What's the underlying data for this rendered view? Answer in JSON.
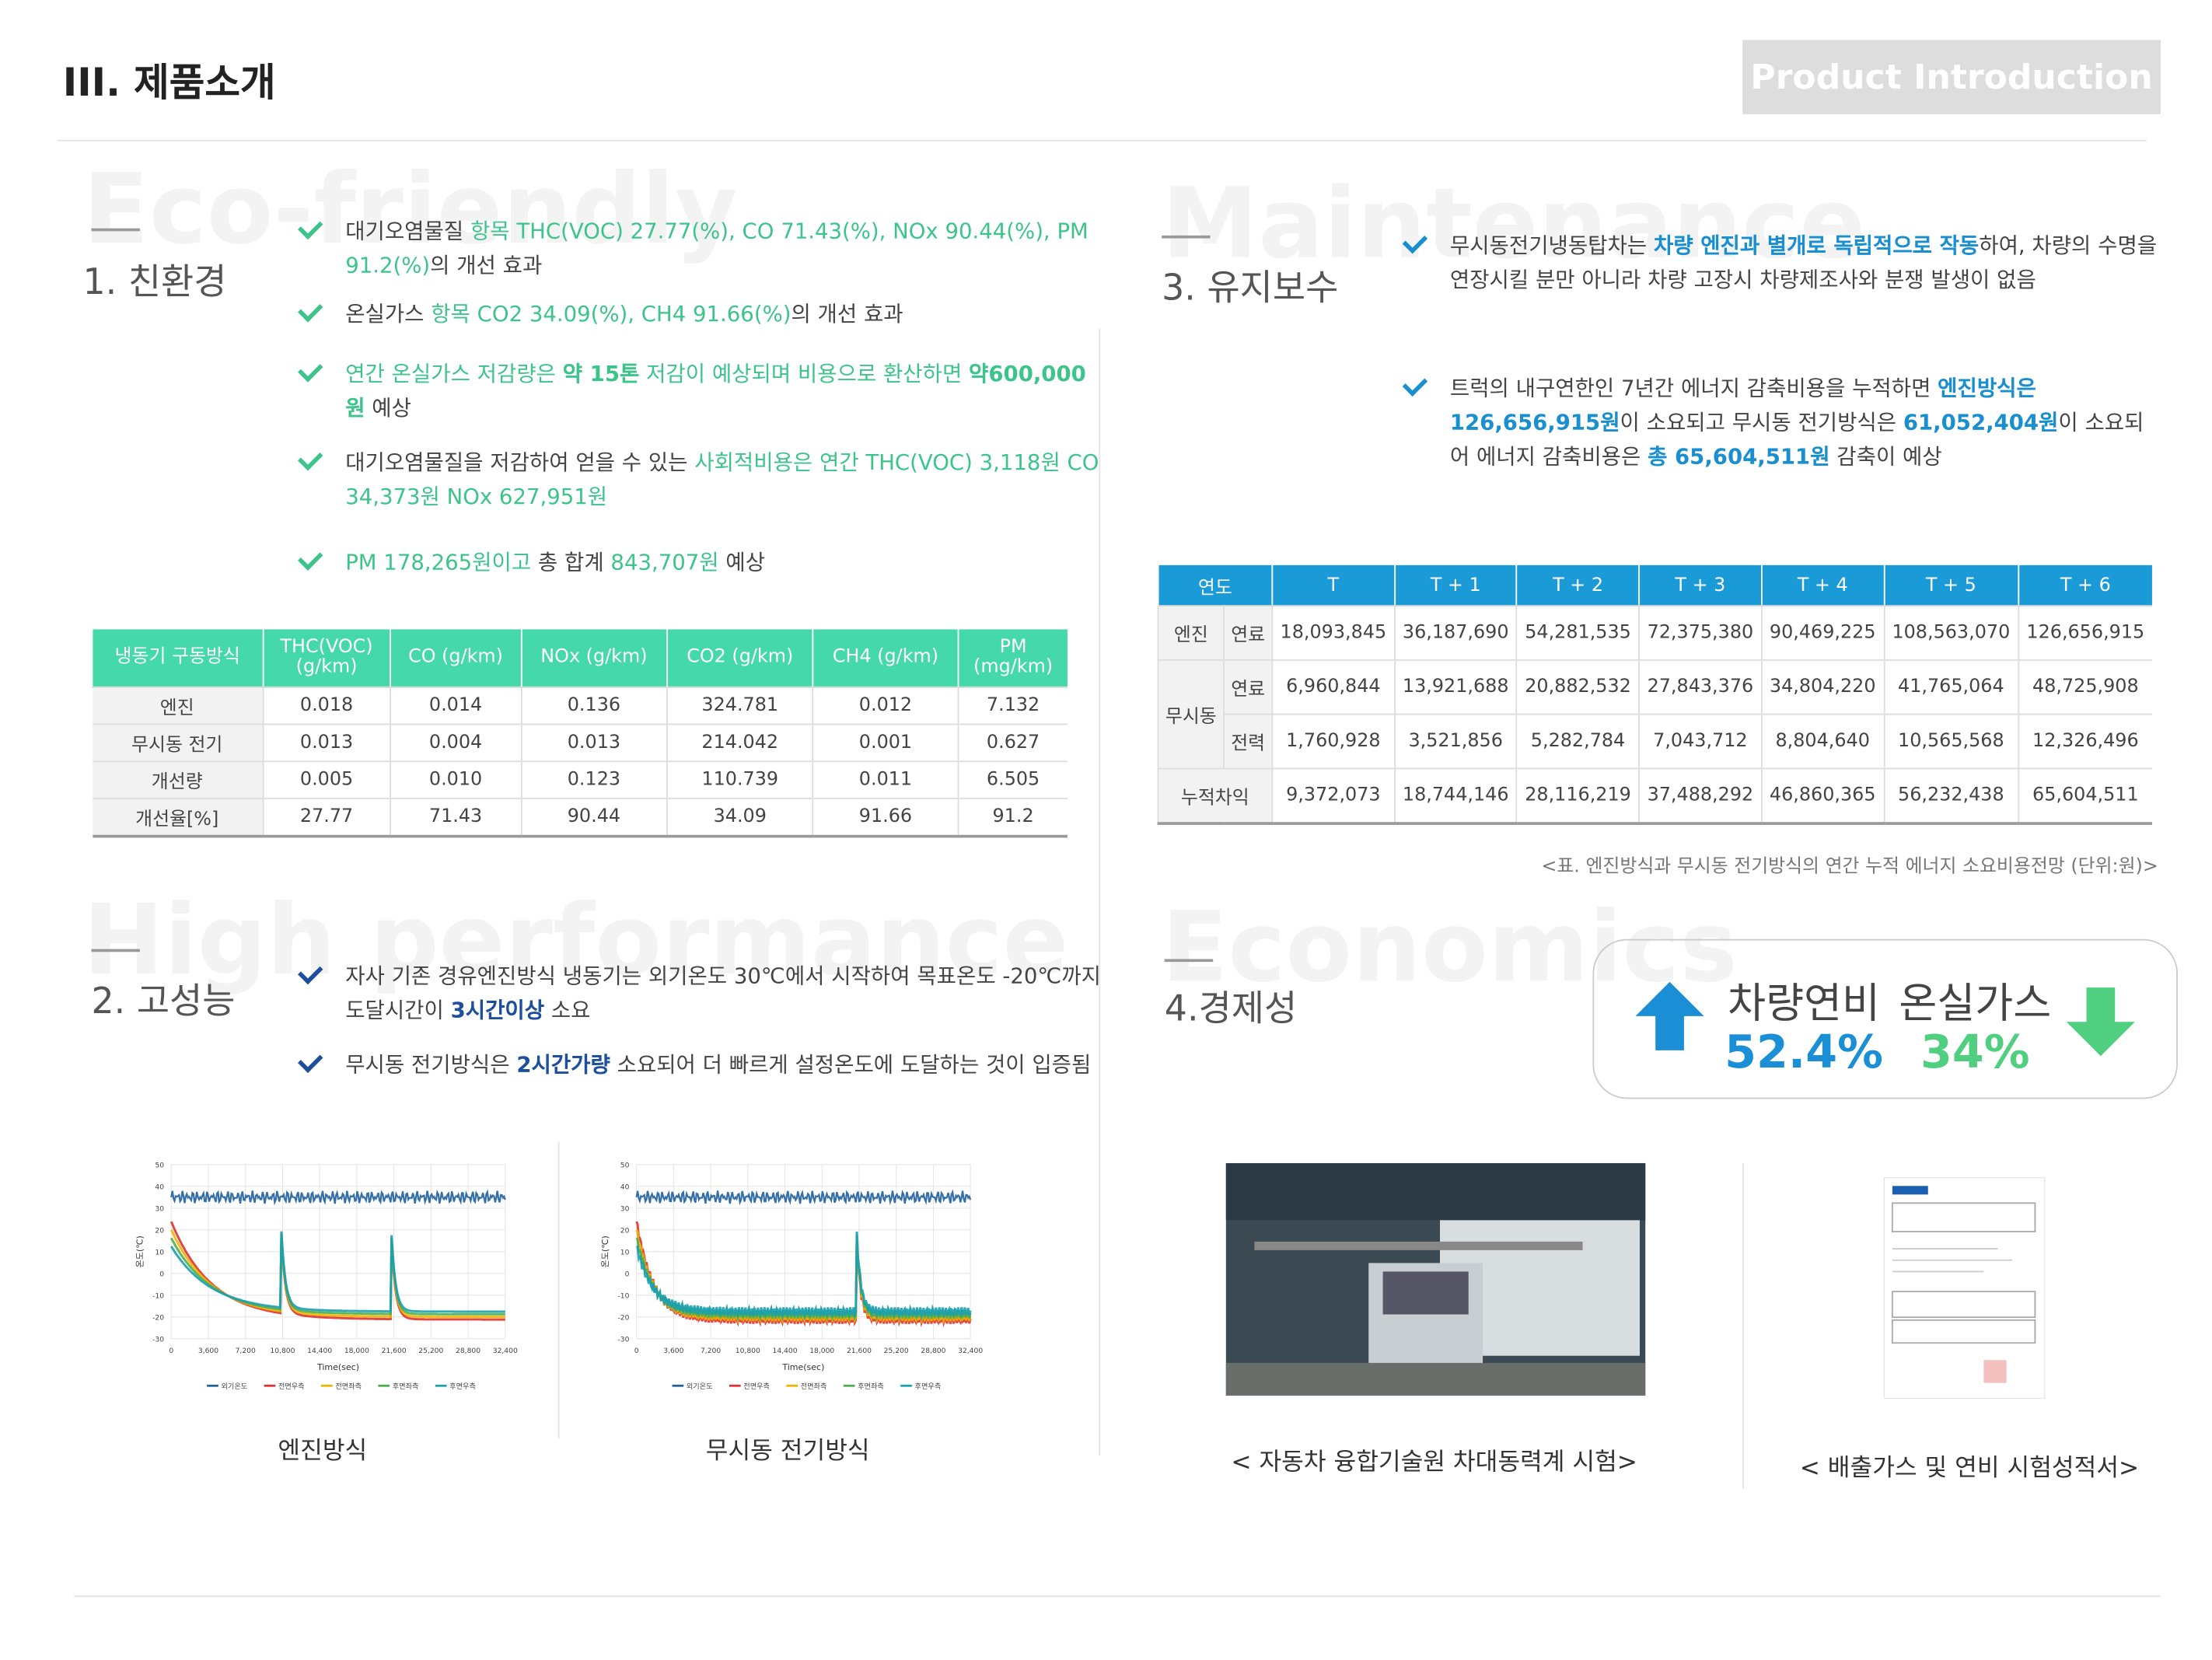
{
  "header": {
    "title": "III. 제품소개",
    "badge": "Product Introduction"
  },
  "eco": {
    "bg": "Eco-friendly",
    "title": "1. 친환경",
    "bullets": [
      [
        [
          "대기오염물질 ",
          ""
        ],
        [
          "항목 THC(VOC) 27.77(%), CO 71.43(%), NOx 90.44(%), PM 91.2(%)",
          "g"
        ],
        [
          "의 개선 효과",
          ""
        ]
      ],
      [
        [
          "온실가스 ",
          ""
        ],
        [
          "항목 CO2 34.09(%), CH4 91.66(%)",
          "g"
        ],
        [
          "의 개선 효과",
          ""
        ]
      ],
      [
        [
          "연간 온실가스 저감량은 ",
          "g"
        ],
        [
          "약 15톤",
          "gb"
        ],
        [
          " 저감이 예상되며 비용으로 환산하면 ",
          "g"
        ],
        [
          "약600,000원",
          "gb"
        ],
        [
          " 예상",
          ""
        ]
      ],
      [
        [
          "대기오염물질을 저감하여 얻을 수 있는 ",
          ""
        ],
        [
          "사회적비용은 연간 THC(VOC) 3,118원 CO 34,373원 NOx 627,951원",
          "g"
        ]
      ],
      [
        [
          "PM 178,265원이고",
          "g"
        ],
        [
          " 총 합계 ",
          ""
        ],
        [
          "843,707원",
          "g"
        ],
        [
          " 예상",
          ""
        ]
      ]
    ],
    "table": {
      "headers": [
        "냉동기 구동방식",
        "THC(VOC)\n(g/km)",
        "CO (g/km)",
        "NOx (g/km)",
        "CO2 (g/km)",
        "CH4 (g/km)",
        "PM\n(mg/km)"
      ],
      "rows": [
        [
          "엔진",
          "0.018",
          "0.014",
          "0.136",
          "324.781",
          "0.012",
          "7.132"
        ],
        [
          "무시동 전기",
          "0.013",
          "0.004",
          "0.013",
          "214.042",
          "0.001",
          "0.627"
        ],
        [
          "개선량",
          "0.005",
          "0.010",
          "0.123",
          "110.739",
          "0.011",
          "6.505"
        ],
        [
          "개선율[%]",
          "27.77",
          "71.43",
          "90.44",
          "34.09",
          "91.66",
          "91.2"
        ]
      ]
    }
  },
  "performance": {
    "bg": "High performance",
    "title": "2. 고성능",
    "bullets": [
      [
        [
          "자사 기존 경유엔진방식 냉동기는 외기온도 30℃에서 시작하여 목표온도 -20℃까지 도달시간이 ",
          ""
        ],
        [
          "3시간이상",
          "b"
        ],
        [
          " 소요",
          ""
        ]
      ],
      [
        [
          "무시동 전기방식은 ",
          ""
        ],
        [
          "2시간가량",
          "b"
        ],
        [
          " 소요되어 더 빠르게 설정온도에 도달하는 것이 입증됨",
          ""
        ]
      ]
    ],
    "charts": [
      {
        "caption": "엔진방식",
        "ylabel": "온도(℃)",
        "xlabel": "Time(sec)",
        "yticks": [
          "50",
          "40",
          "30",
          "20",
          "10",
          "0",
          "-10",
          "-20",
          "-30"
        ],
        "xticks": [
          "0",
          "3,600",
          "7,200",
          "10,800",
          "14,400",
          "18,000",
          "21,600",
          "25,200",
          "28,800",
          "32,400"
        ],
        "legend": [
          {
            "name": "외기온도",
            "color": "#1f5f9f"
          },
          {
            "name": "전면우측",
            "color": "#e0322f"
          },
          {
            "name": "전면좌측",
            "color": "#f0b400"
          },
          {
            "name": "후면좌측",
            "color": "#4cae4c"
          },
          {
            "name": "후면우측",
            "color": "#1aa0b0"
          }
        ]
      },
      {
        "caption": "무시동 전기방식",
        "ylabel": "온도(℃)",
        "xlabel": "Time(sec)",
        "yticks": [
          "50",
          "40",
          "30",
          "20",
          "10",
          "0",
          "-10",
          "-20",
          "-30"
        ],
        "xticks": [
          "0",
          "3,600",
          "7,200",
          "10,800",
          "14,400",
          "18,000",
          "21,600",
          "25,200",
          "28,800",
          "32,400"
        ],
        "legend": [
          {
            "name": "외기온도",
            "color": "#1f5f9f"
          },
          {
            "name": "전면우측",
            "color": "#e0322f"
          },
          {
            "name": "전면좌측",
            "color": "#f0b400"
          },
          {
            "name": "후면좌측",
            "color": "#4cae4c"
          },
          {
            "name": "후면우측",
            "color": "#1aa0b0"
          }
        ]
      }
    ]
  },
  "maintenance": {
    "bg": "Maintenance",
    "title": "3. 유지보수",
    "bullets": [
      [
        [
          "무시동전기냉동탑차는 ",
          ""
        ],
        [
          "차량 엔진과 별개로 독립적으로 작동",
          "b"
        ],
        [
          "하여, 차량의 수명을 연장시킬 분만 아니라 차량 고장시 차량제조사와 분쟁 발생이 없음",
          ""
        ]
      ],
      [
        [
          "트럭의 내구연한인 7년간 에너지 감축비용을 누적하면 ",
          ""
        ],
        [
          "엔진방식은 126,656,915원",
          "b"
        ],
        [
          "이 소요되고 무시동 전기방식은 ",
          ""
        ],
        [
          "61,052,404원",
          "b"
        ],
        [
          "이 소요되어 에너지 감축비용은 ",
          ""
        ],
        [
          "총 65,604,511원",
          "b"
        ],
        [
          " 감축이 예상",
          ""
        ]
      ]
    ],
    "table": {
      "headers": [
        "연도",
        "T",
        "T + 1",
        "T + 2",
        "T + 3",
        "T + 4",
        "T + 5",
        "T + 6"
      ],
      "rows": [
        {
          "group": "엔진",
          "sub": "연료",
          "values": [
            "18,093,845",
            "36,187,690",
            "54,281,535",
            "72,375,380",
            "90,469,225",
            "108,563,070",
            "126,656,915"
          ]
        },
        {
          "group": "무시동",
          "sub": "연료",
          "values": [
            "6,960,844",
            "13,921,688",
            "20,882,532",
            "27,843,376",
            "34,804,220",
            "41,765,064",
            "48,725,908"
          ]
        },
        {
          "sub": "전력",
          "values": [
            "1,760,928",
            "3,521,856",
            "5,282,784",
            "7,043,712",
            "8,804,640",
            "10,565,568",
            "12,326,496"
          ]
        },
        {
          "group": "누적차익",
          "values": [
            "9,372,073",
            "18,744,146",
            "28,116,219",
            "37,488,292",
            "46,860,365",
            "56,232,438",
            "65,604,511"
          ]
        }
      ],
      "caption": "<표. 엔진방식과 무시동 전기방식의 연간 누적 에너지 소요비용전망 (단위:원)>"
    }
  },
  "economics": {
    "bg": "Economics",
    "title": "4.경제성",
    "stats": [
      {
        "label": "차량연비",
        "value": "52.4%"
      },
      {
        "label": "온실가스",
        "value": "34%"
      }
    ],
    "photos": [
      "< 자동차 융합기술원 차대동력계 시험>",
      "< 배출가스 및 연비 시험성적서>"
    ]
  }
}
